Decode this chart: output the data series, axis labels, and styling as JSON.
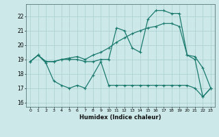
{
  "bg_color": "#cce8e8",
  "grid_color": "#aacece",
  "line_color": "#1a7a6e",
  "markersize": 3,
  "linewidth": 0.9,
  "xlabel": "Humidex (Indice chaleur)",
  "xlim": [
    -0.5,
    23.5
  ],
  "ylim": [
    15.7,
    22.85
  ],
  "yticks": [
    16,
    17,
    18,
    19,
    20,
    21,
    22
  ],
  "xticks": [
    0,
    1,
    2,
    3,
    4,
    5,
    6,
    7,
    8,
    9,
    10,
    11,
    12,
    13,
    14,
    15,
    16,
    17,
    18,
    19,
    20,
    21,
    22,
    23
  ],
  "line1_x": [
    0,
    1,
    2,
    3,
    4,
    5,
    6,
    7,
    8,
    9,
    10,
    11,
    12,
    13,
    14,
    15,
    16,
    17,
    18,
    19,
    20,
    21,
    22,
    23
  ],
  "line1_y": [
    18.85,
    19.3,
    18.85,
    18.85,
    19.0,
    19.1,
    19.2,
    19.0,
    19.3,
    19.5,
    19.8,
    20.2,
    20.5,
    20.8,
    21.0,
    21.2,
    21.3,
    21.5,
    21.5,
    21.3,
    19.3,
    19.2,
    18.4,
    17.0
  ],
  "line2_x": [
    0,
    1,
    2,
    3,
    4,
    5,
    6,
    7,
    8,
    9,
    10,
    11,
    12,
    13,
    14,
    15,
    16,
    17,
    18,
    19,
    20,
    21,
    22,
    23
  ],
  "line2_y": [
    18.85,
    19.3,
    18.85,
    18.85,
    19.0,
    19.0,
    19.0,
    18.85,
    18.85,
    19.0,
    19.0,
    21.2,
    21.0,
    19.8,
    19.5,
    21.8,
    22.4,
    22.4,
    22.2,
    22.2,
    19.3,
    19.0,
    16.4,
    17.0
  ],
  "line3_x": [
    0,
    1,
    2,
    3,
    4,
    5,
    6,
    7,
    8,
    9,
    10,
    11,
    12,
    13,
    14,
    15,
    16,
    17,
    18,
    19,
    20,
    21,
    22,
    23
  ],
  "line3_y": [
    18.85,
    19.3,
    18.75,
    17.5,
    17.2,
    17.0,
    17.2,
    17.0,
    17.9,
    18.85,
    17.2,
    17.2,
    17.2,
    17.2,
    17.2,
    17.2,
    17.2,
    17.2,
    17.2,
    17.2,
    17.2,
    17.0,
    16.4,
    17.0
  ]
}
